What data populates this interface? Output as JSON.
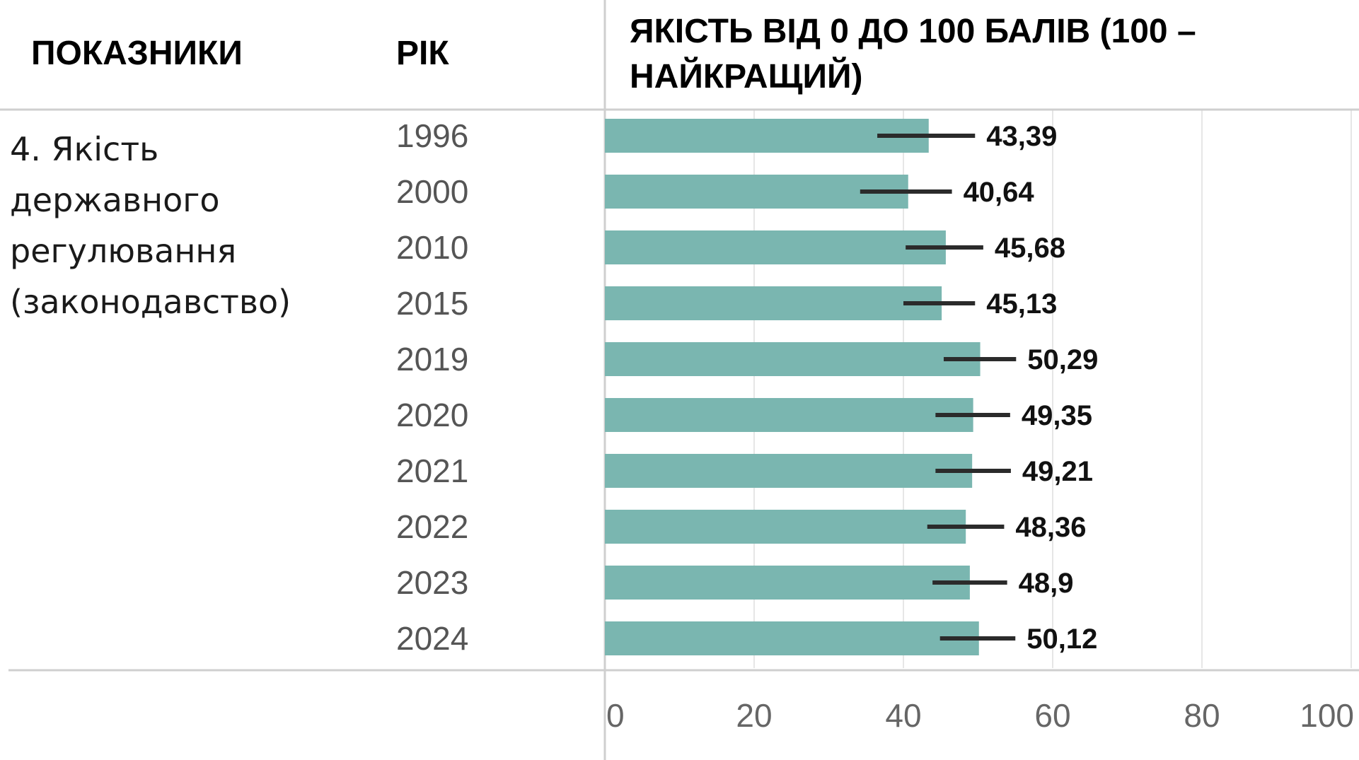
{
  "header": {
    "col_indicators": "ПОКАЗНИКИ",
    "col_year": "РІК",
    "col_quality_line1": "ЯКІСТЬ ВІД 0 ДО 100 БАЛІВ (100 –",
    "col_quality_line2": "НАЙКРАЩИЙ)"
  },
  "indicator": {
    "line1": "4. Якість",
    "line2": "державного",
    "line3": "регулювання",
    "line4": "(законодавство)"
  },
  "colors": {
    "bar": "#7ab6b0",
    "error_bar": "#2b2b2b",
    "grid": "#e6e6e6",
    "rule": "#cfcfcf",
    "year_text": "#555555",
    "tick_text": "#666666"
  },
  "chart_data": {
    "type": "bar",
    "orientation": "horizontal",
    "categories": [
      "1996",
      "2000",
      "2010",
      "2015",
      "2019",
      "2020",
      "2021",
      "2022",
      "2023",
      "2024"
    ],
    "values": [
      43.39,
      40.64,
      45.68,
      45.13,
      50.29,
      49.35,
      49.21,
      48.36,
      48.9,
      50.12
    ],
    "value_labels": [
      "43,39",
      "40,64",
      "45,68",
      "45,13",
      "50,29",
      "49,35",
      "49,21",
      "48,36",
      "48,9",
      "50,12"
    ],
    "error_low": [
      36.5,
      34.2,
      40.3,
      40.0,
      45.4,
      44.3,
      44.3,
      43.2,
      43.9,
      44.9
    ],
    "error_high": [
      49.6,
      46.5,
      50.7,
      49.6,
      55.1,
      54.3,
      54.4,
      53.5,
      53.9,
      55.0
    ],
    "xlim": [
      0,
      100
    ],
    "xticks": [
      "0",
      "20",
      "40",
      "60",
      "80",
      "100"
    ],
    "grid": true,
    "title": "",
    "xlabel": "",
    "ylabel": ""
  }
}
